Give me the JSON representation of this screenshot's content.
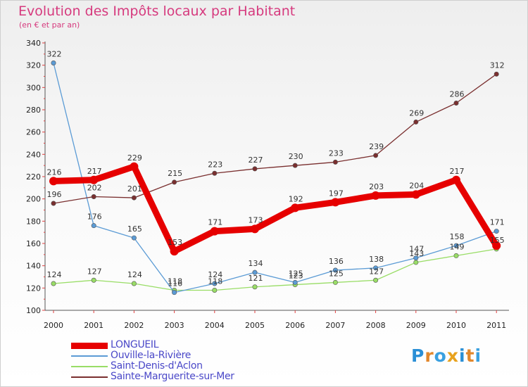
{
  "title": "Evolution des Impôts locaux par Habitant",
  "subtitle": "(en € et par an)",
  "logo": {
    "text": "Proxiti",
    "colors": [
      "#2a8fd6",
      "#e2872b",
      "#3aa0e0",
      "#e8a21d",
      "#2a8fd6",
      "#e2872b",
      "#3aa0e0"
    ]
  },
  "chart_data": {
    "type": "line",
    "x": [
      "2000",
      "2001",
      "2002",
      "2003",
      "2004",
      "2005",
      "2006",
      "2007",
      "2008",
      "2009",
      "2010",
      "2011"
    ],
    "ylim": [
      100,
      340
    ],
    "yticks": [
      "100",
      "120",
      "140",
      "160",
      "180",
      "200",
      "220",
      "240",
      "260",
      "280",
      "300",
      "320",
      "340"
    ],
    "grid": false,
    "legend_position": "bottom-left",
    "series": [
      {
        "name": "LONGUEIL",
        "color": "#e60000",
        "values": [
          216,
          217,
          229,
          153,
          171,
          173,
          192,
          197,
          203,
          204,
          217,
          158
        ],
        "labels": [
          "216",
          "217",
          "229",
          "153",
          "171",
          "173",
          "192",
          "197",
          "203",
          "204",
          "217",
          ""
        ]
      },
      {
        "name": "Ouville-la-Rivière",
        "color": "#5b9bd5",
        "values": [
          322,
          176,
          165,
          116,
          124,
          134,
          125,
          136,
          138,
          147,
          158,
          171
        ],
        "labels": [
          "322",
          "176",
          "165",
          "116",
          "124",
          "134",
          "125",
          "136",
          "138",
          "147",
          "158",
          "171"
        ]
      },
      {
        "name": "Saint-Denis-d'Aclon",
        "color": "#99dd66",
        "values": [
          124,
          127,
          124,
          118,
          118,
          121,
          123,
          125,
          127,
          143,
          149,
          155
        ],
        "labels": [
          "124",
          "127",
          "124",
          "118",
          "118",
          "121",
          "123",
          "125",
          "127",
          "143",
          "149",
          "155"
        ]
      },
      {
        "name": "Sainte-Marguerite-sur-Mer",
        "color": "#7a2f2f",
        "values": [
          196,
          202,
          201,
          215,
          223,
          227,
          230,
          233,
          239,
          269,
          286,
          312
        ],
        "labels": [
          "196",
          "202",
          "201",
          "215",
          "223",
          "227",
          "230",
          "233",
          "239",
          "269",
          "286",
          "312"
        ]
      }
    ]
  }
}
